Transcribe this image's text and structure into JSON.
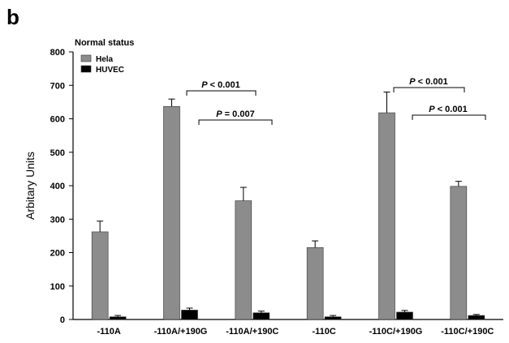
{
  "panel_label": "b",
  "chart_data": {
    "type": "bar",
    "title": "Normal status",
    "xlabel": "",
    "ylabel": "Arbitary Units",
    "ylim": [
      0,
      800
    ],
    "yticks": [
      "0",
      "100",
      "200",
      "300",
      "400",
      "500",
      "600",
      "700",
      "800"
    ],
    "categories": [
      "-110A",
      "-110A/+190G",
      "-110A/+190C",
      "-110C",
      "-110C/+190G",
      "-110C/+190C"
    ],
    "series": [
      {
        "name": "Hela",
        "color": "#8c8c8c",
        "values": [
          262,
          637,
          355,
          215,
          618,
          398
        ],
        "errors": [
          32,
          22,
          40,
          20,
          62,
          15
        ]
      },
      {
        "name": "HUVEC",
        "color": "#000000",
        "values": [
          8,
          28,
          20,
          8,
          22,
          12
        ],
        "errors": [
          4,
          6,
          5,
          4,
          5,
          3
        ]
      }
    ],
    "legend_position": "top-left",
    "grid": false,
    "annotations": [
      {
        "italic": "P",
        "rest": " < 0.001",
        "from": 1,
        "to": 2
      },
      {
        "italic": "P",
        "rest": " = 0.007",
        "from": 1,
        "to": 2
      },
      {
        "italic": "P",
        "rest": " < 0.001",
        "from": 4,
        "to": 4
      },
      {
        "italic": "P",
        "rest": " < 0.001",
        "from": 4,
        "to": 5
      }
    ]
  }
}
